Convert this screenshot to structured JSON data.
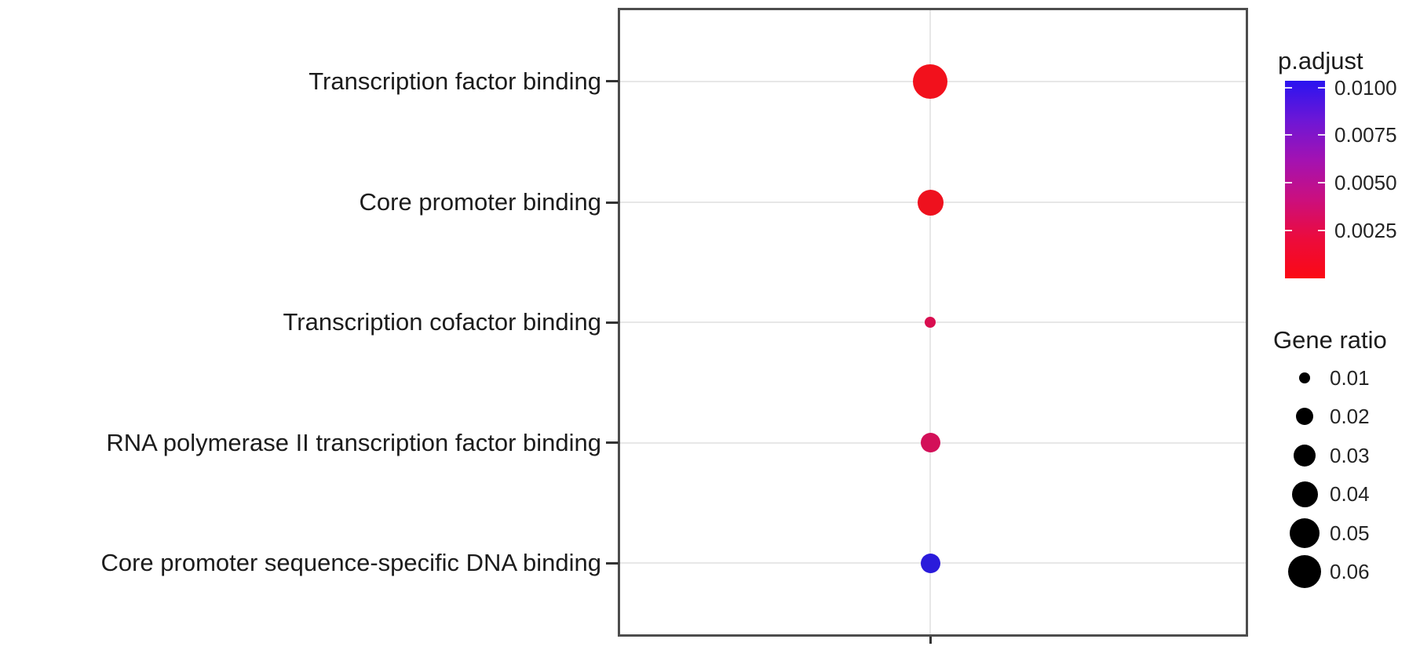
{
  "chart_data": {
    "type": "scatter",
    "subtype": "go-enrichment-dotplot",
    "title": "",
    "xlabel": "",
    "ylabel": "",
    "categories": [
      "Transcription factor binding",
      "Core promoter binding",
      "Transcription cofactor binding",
      "RNA polymerase II transcription factor binding",
      "Core promoter sequence-specific DNA binding"
    ],
    "points": [
      {
        "category": "Transcription factor binding",
        "gene_ratio": 0.065,
        "p_adjust": 0.0006,
        "color": "#f2111c"
      },
      {
        "category": "Core promoter binding",
        "gene_ratio": 0.04,
        "p_adjust": 0.0008,
        "color": "#ee111e"
      },
      {
        "category": "Transcription cofactor binding",
        "gene_ratio": 0.01,
        "p_adjust": 0.003,
        "color": "#d90e50"
      },
      {
        "category": "RNA polymerase II transcription factor binding",
        "gene_ratio": 0.025,
        "p_adjust": 0.0033,
        "color": "#d31059"
      },
      {
        "category": "Core promoter sequence-specific DNA binding",
        "gene_ratio": 0.025,
        "p_adjust": 0.0095,
        "color": "#2a1bdb"
      }
    ],
    "layout_hints": {
      "grid": "light horizontal line per category, single vertical line at dot column",
      "x_tick_labels_visible": false,
      "legend_position": "right"
    },
    "legends": {
      "p_adjust": {
        "title": "p.adjust",
        "tick_labels": [
          "0.0100",
          "0.0075",
          "0.0050",
          "0.0025"
        ],
        "tick_values": [
          0.01,
          0.0075,
          0.005,
          0.0025
        ],
        "bar_value_max": 0.01035,
        "gradient_top_to_bottom": [
          "#2a14f0",
          "#6d17d6",
          "#a312b2",
          "#cb0f7e",
          "#ec0b3c",
          "#fb0a14"
        ]
      },
      "gene_ratio": {
        "title": "Gene ratio",
        "entries": [
          {
            "label": "0.01",
            "value": 0.01
          },
          {
            "label": "0.02",
            "value": 0.02
          },
          {
            "label": "0.03",
            "value": 0.03
          },
          {
            "label": "0.04",
            "value": 0.04
          },
          {
            "label": "0.05",
            "value": 0.05
          },
          {
            "label": "0.06",
            "value": 0.06
          }
        ]
      }
    }
  }
}
